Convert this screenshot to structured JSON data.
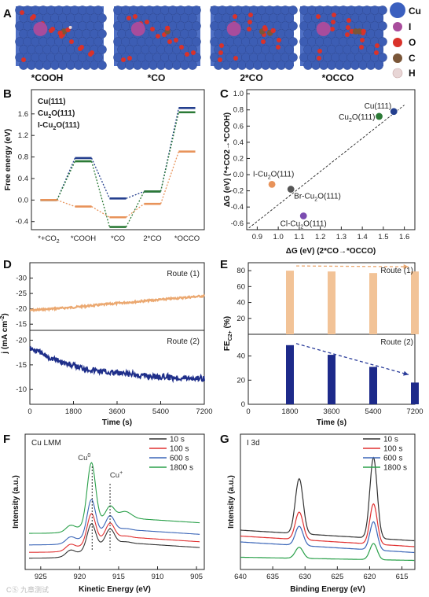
{
  "panel_letters": {
    "A": "A",
    "B": "B",
    "C": "C",
    "D": "D",
    "E": "E",
    "F": "F",
    "G": "G"
  },
  "panel_a": {
    "snapshots": [
      "*COOH",
      "*CO",
      "2*CO",
      "*OCCO"
    ],
    "legend": [
      {
        "label": "Cu",
        "color": "#3a5fbf"
      },
      {
        "label": "I",
        "color": "#a84c9c"
      },
      {
        "label": "O",
        "color": "#d9322a"
      },
      {
        "label": "C",
        "color": "#7a5638"
      },
      {
        "label": "H",
        "color": "#e8d6d6"
      }
    ]
  },
  "chart_data": [
    {
      "id": "B",
      "type": "line",
      "ylabel": "Free energy (eV)",
      "categories": [
        "*+CO2",
        "*COOH",
        "*CO",
        "2*CO",
        "*OCCO"
      ],
      "xtick_labels": [
        "*+CO",
        "*COOH",
        "*CO",
        "2*CO",
        "*OCCO"
      ],
      "xtick_subs": [
        "2",
        "",
        "",
        "",
        ""
      ],
      "ylim": [
        -0.55,
        2.05
      ],
      "yticks": [
        -0.4,
        0.0,
        0.4,
        0.8,
        1.2,
        1.6
      ],
      "ytick_labels": [
        "-0.4",
        "0.0",
        "0.4",
        "0.8",
        "1.2",
        "1.6"
      ],
      "series": [
        {
          "name": "Cu(111)",
          "color": "#243f8e",
          "values": [
            0,
            0.78,
            0.03,
            0.16,
            1.71
          ]
        },
        {
          "name": "Cu2O(111)",
          "color": "#2b7a36",
          "values": [
            0,
            0.72,
            -0.5,
            0.16,
            1.63
          ]
        },
        {
          "name": "I-Cu2O(111)",
          "color": "#e8935a",
          "values": [
            0,
            -0.12,
            -0.32,
            -0.07,
            0.9
          ]
        }
      ],
      "legend_labels": [
        {
          "main": "Cu(111)",
          "sub": "",
          "rest": ""
        },
        {
          "main": "Cu",
          "sub": "2",
          "rest": "O(111)"
        },
        {
          "main": "I-Cu",
          "sub": "2",
          "rest": "O(111)"
        }
      ]
    },
    {
      "id": "C",
      "type": "scatter",
      "xlabel": "ΔG (eV) (2*CO→*OCCO)",
      "ylabel": "ΔG (eV) (*+CO2→*COOH)",
      "xlim": [
        0.85,
        1.65
      ],
      "ylim": [
        -0.68,
        1.05
      ],
      "xticks": [
        0.9,
        1.0,
        1.1,
        1.2,
        1.3,
        1.4,
        1.5,
        1.6
      ],
      "xtick_labels": [
        "0.9",
        "1.0",
        "1.1",
        "1.2",
        "1.3",
        "1.4",
        "1.5",
        "1.6"
      ],
      "yticks": [
        -0.6,
        -0.4,
        -0.2,
        0.0,
        0.2,
        0.4,
        0.6,
        0.8,
        1.0
      ],
      "ytick_labels": [
        "-0.6",
        "-0.4",
        "-0.2",
        "0.0",
        "0.2",
        "0.4",
        "0.6",
        "0.8",
        "1.0"
      ],
      "points": [
        {
          "name": "Cu(111)",
          "x": 1.55,
          "y": 0.78,
          "color": "#243f8e",
          "labelColor": "#243f8e"
        },
        {
          "name": "Cu2O(111)",
          "x": 1.48,
          "y": 0.72,
          "color": "#2b7a36",
          "labelColor": "#2b7a36"
        },
        {
          "name": "I-Cu2O(111)",
          "x": 0.97,
          "y": -0.12,
          "color": "#e8935a",
          "labelColor": "#e8935a"
        },
        {
          "name": "Br-Cu2O(111)",
          "x": 1.06,
          "y": -0.18,
          "color": "#555555",
          "labelColor": "#333333"
        },
        {
          "name": "Cl-Cu2O(111)",
          "x": 1.12,
          "y": -0.51,
          "color": "#7b4cb0",
          "labelColor": "#7b4cb0"
        }
      ],
      "point_labels": [
        {
          "main": "Cu(111)",
          "sub": "",
          "rest": ""
        },
        {
          "main": "Cu",
          "sub": "2",
          "rest": "O(111)"
        },
        {
          "main": "I-Cu",
          "sub": "2",
          "rest": "O(111)"
        },
        {
          "main": "Br-Cu",
          "sub": "2",
          "rest": "O(111)"
        },
        {
          "main": "Cl-Cu",
          "sub": "2",
          "rest": "O(111)"
        }
      ],
      "diagonal": true
    },
    {
      "id": "D",
      "type": "line",
      "xlabel": "Time (s)",
      "ylabel": "j (mA cm-2)",
      "xlim": [
        0,
        7200
      ],
      "xticks": [
        0,
        1800,
        3600,
        5400,
        7200
      ],
      "xtick_labels": [
        "0",
        "1800",
        "3600",
        "5400",
        "7200"
      ],
      "subplots": [
        {
          "label": "Route (1)",
          "color": "#eba870",
          "ylim": [
            -35,
            -13
          ],
          "yticks": [
            -30,
            -25,
            -20,
            -15
          ],
          "ytick_labels": [
            "-30",
            "-25",
            "-20",
            "-15"
          ],
          "x": [
            0,
            1800,
            3600,
            5400,
            7200
          ],
          "y": [
            -19.5,
            -20.5,
            -21.8,
            -23.0,
            -24.2
          ]
        },
        {
          "label": "Route (2)",
          "color": "#1f2f8a",
          "ylim": [
            -22,
            -7
          ],
          "yticks": [
            -20,
            -15,
            -10
          ],
          "ytick_labels": [
            "-20",
            "-15",
            "-10"
          ],
          "x": [
            0,
            600,
            1200,
            1800,
            2700,
            3600,
            4500,
            5400,
            6300,
            7200
          ],
          "y": [
            -18.5,
            -17.0,
            -15.8,
            -14.8,
            -13.9,
            -13.3,
            -12.9,
            -12.6,
            -12.4,
            -12.3
          ]
        }
      ]
    },
    {
      "id": "E",
      "type": "bar",
      "xlabel": "Time (s)",
      "ylabel": "FEC2+ (%)",
      "xlim": [
        0,
        7200
      ],
      "xticks": [
        0,
        1800,
        3600,
        5400,
        7200
      ],
      "xtick_labels": [
        "0",
        "1800",
        "3600",
        "5400",
        "7200"
      ],
      "subplots": [
        {
          "label": "Route (1)",
          "color": "#f2c397",
          "ylim": [
            0,
            90
          ],
          "yticks": [
            0,
            20,
            40,
            60,
            80
          ],
          "ytick_labels": [
            "",
            "20",
            "40",
            "60",
            "80"
          ],
          "categories": [
            1800,
            3600,
            5400,
            7200
          ],
          "values": [
            80,
            79,
            77,
            79
          ]
        },
        {
          "label": "Route (2)",
          "color": "#1d2a8a",
          "ylim": [
            0,
            58
          ],
          "yticks": [
            0,
            20,
            40
          ],
          "ytick_labels": [
            "0",
            "20",
            "40"
          ],
          "categories": [
            1800,
            3600,
            5400,
            7200
          ],
          "values": [
            49,
            41,
            31,
            18
          ]
        }
      ]
    },
    {
      "id": "F",
      "type": "line",
      "panel_title": "Cu LMM",
      "xlabel": "Kinetic Energy (eV)",
      "ylabel": "Intensity (a.u.)",
      "xlim": [
        927,
        904
      ],
      "xticks": [
        925,
        920,
        915,
        910,
        905
      ],
      "xtick_labels": [
        "925",
        "920",
        "915",
        "910",
        "905"
      ],
      "annotations": [
        {
          "text": "Cu",
          "sup": "0",
          "x": 918.4
        },
        {
          "text": "Cu",
          "sup": "+",
          "x": 916.1
        }
      ],
      "series": [
        {
          "name": "10 s",
          "color": "#333333",
          "offset": 0.0
        },
        {
          "name": "100 s",
          "color": "#e03030",
          "offset": 0.07
        },
        {
          "name": "600 s",
          "color": "#3b66b8",
          "offset": 0.16
        },
        {
          "name": "1800 s",
          "color": "#2aa04a",
          "offset": 0.3
        }
      ]
    },
    {
      "id": "G",
      "type": "line",
      "panel_title": "I 3d",
      "xlabel": "Binding Energy (eV)",
      "ylabel": "Intensity (a.u.)",
      "xlim": [
        640,
        613
      ],
      "xticks": [
        640,
        635,
        630,
        625,
        620,
        615
      ],
      "xtick_labels": [
        "640",
        "635",
        "630",
        "625",
        "620",
        "615"
      ],
      "series": [
        {
          "name": "10 s",
          "color": "#333333",
          "amp": 1.0
        },
        {
          "name": "100 s",
          "color": "#e03030",
          "amp": 0.5
        },
        {
          "name": "600 s",
          "color": "#3b66b8",
          "amp": 0.35
        },
        {
          "name": "1800 s",
          "color": "#2aa04a",
          "amp": 0.2
        }
      ]
    }
  ],
  "watermark": "CⓈ 九章测试"
}
